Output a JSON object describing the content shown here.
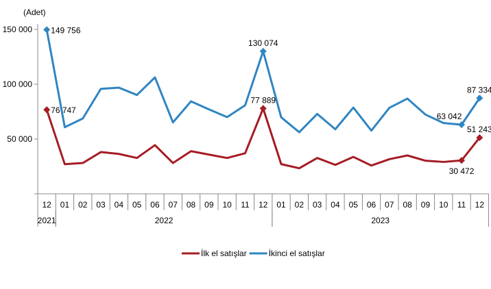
{
  "chart_data": {
    "type": "line",
    "ylabel": "(Adet)",
    "ylim": [
      0,
      150000
    ],
    "yticks": [
      50000,
      100000,
      150000
    ],
    "ytick_labels": [
      "50 000",
      "100 000",
      "150 000"
    ],
    "grid": false,
    "legend_position": "bottom",
    "categories": [
      "12",
      "01",
      "02",
      "03",
      "04",
      "05",
      "06",
      "07",
      "08",
      "09",
      "10",
      "11",
      "12",
      "01",
      "02",
      "03",
      "04",
      "05",
      "06",
      "07",
      "08",
      "09",
      "10",
      "11",
      "12"
    ],
    "year_groups": [
      {
        "label": "2021",
        "count": 1
      },
      {
        "label": "2022",
        "count": 12
      },
      {
        "label": "2023",
        "count": 12
      }
    ],
    "series": [
      {
        "name": "İlk el satışlar",
        "color": "#a51c24",
        "values": [
          76747,
          27000,
          28100,
          38100,
          36400,
          32700,
          44400,
          28100,
          38900,
          35800,
          32700,
          37000,
          77889,
          27100,
          23300,
          32700,
          26400,
          33700,
          25800,
          31600,
          35000,
          30200,
          29100,
          30472,
          51243
        ]
      },
      {
        "name": "İkinci el satışlar",
        "color": "#2f85c2",
        "values": [
          149756,
          60800,
          68750,
          95800,
          96900,
          90200,
          106250,
          65200,
          84400,
          77000,
          70000,
          80800,
          130074,
          69800,
          56200,
          72900,
          58900,
          78700,
          57700,
          78500,
          86900,
          72300,
          64600,
          63042,
          87334
        ]
      }
    ],
    "annotations": [
      {
        "series": 1,
        "index": 0,
        "text": "149 756",
        "pos": "right"
      },
      {
        "series": 0,
        "index": 0,
        "text": "76 747",
        "pos": "right"
      },
      {
        "series": 1,
        "index": 12,
        "text": "130 074",
        "pos": "above"
      },
      {
        "series": 0,
        "index": 12,
        "text": "77 889",
        "pos": "above"
      },
      {
        "series": 1,
        "index": 23,
        "text": "63 042",
        "pos": "above-left"
      },
      {
        "series": 0,
        "index": 23,
        "text": "30 472",
        "pos": "below"
      },
      {
        "series": 1,
        "index": 24,
        "text": "87 334",
        "pos": "above"
      },
      {
        "series": 0,
        "index": 24,
        "text": "51 243",
        "pos": "above"
      }
    ]
  }
}
